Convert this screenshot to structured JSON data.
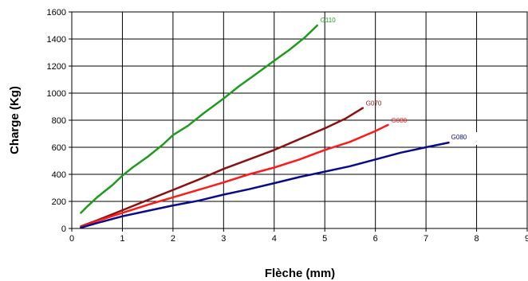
{
  "chart_data": {
    "type": "line",
    "title": "",
    "xlabel": "Flèche (mm)",
    "ylabel": "Charge (Kg)",
    "xlim": [
      0,
      9
    ],
    "ylim": [
      0,
      1600
    ],
    "x_ticks": [
      "0",
      "1",
      "2",
      "3",
      "4",
      "5",
      "6",
      "7",
      "8",
      "9"
    ],
    "y_ticks": [
      "0",
      "200",
      "400",
      "600",
      "800",
      "1000",
      "1200",
      "1400",
      "1600"
    ],
    "grid": true,
    "series": [
      {
        "name": "G110",
        "color": "#1e9b1e",
        "points": [
          [
            0.18,
            115
          ],
          [
            0.3,
            160
          ],
          [
            0.5,
            230
          ],
          [
            0.8,
            320
          ],
          [
            1.0,
            390
          ],
          [
            1.2,
            450
          ],
          [
            1.5,
            530
          ],
          [
            1.8,
            620
          ],
          [
            2.0,
            690
          ],
          [
            2.3,
            760
          ],
          [
            2.6,
            850
          ],
          [
            3.0,
            960
          ],
          [
            3.3,
            1050
          ],
          [
            3.6,
            1130
          ],
          [
            4.0,
            1240
          ],
          [
            4.3,
            1320
          ],
          [
            4.6,
            1410
          ],
          [
            4.85,
            1500
          ]
        ]
      },
      {
        "name": "G070",
        "color": "#8b1010",
        "points": [
          [
            0.18,
            15
          ],
          [
            0.5,
            60
          ],
          [
            1.0,
            135
          ],
          [
            1.5,
            210
          ],
          [
            2.0,
            285
          ],
          [
            2.5,
            360
          ],
          [
            3.0,
            440
          ],
          [
            3.5,
            510
          ],
          [
            4.0,
            580
          ],
          [
            4.5,
            660
          ],
          [
            5.0,
            740
          ],
          [
            5.4,
            810
          ],
          [
            5.75,
            890
          ]
        ]
      },
      {
        "name": "G080",
        "color": "#ff1a1a",
        "points": [
          [
            0.18,
            10
          ],
          [
            0.5,
            55
          ],
          [
            1.0,
            115
          ],
          [
            1.5,
            175
          ],
          [
            2.0,
            230
          ],
          [
            2.5,
            285
          ],
          [
            3.0,
            340
          ],
          [
            3.5,
            400
          ],
          [
            4.0,
            450
          ],
          [
            4.5,
            510
          ],
          [
            5.0,
            580
          ],
          [
            5.5,
            640
          ],
          [
            6.0,
            720
          ],
          [
            6.25,
            765
          ]
        ]
      },
      {
        "name": "G080",
        "color": "#0a0a8c",
        "points": [
          [
            0.18,
            5
          ],
          [
            0.5,
            40
          ],
          [
            1.0,
            90
          ],
          [
            1.5,
            130
          ],
          [
            2.0,
            170
          ],
          [
            2.5,
            205
          ],
          [
            3.0,
            250
          ],
          [
            3.5,
            290
          ],
          [
            4.0,
            335
          ],
          [
            4.5,
            380
          ],
          [
            5.0,
            420
          ],
          [
            5.5,
            460
          ],
          [
            6.0,
            510
          ],
          [
            6.5,
            560
          ],
          [
            7.0,
            600
          ],
          [
            7.45,
            635
          ]
        ]
      }
    ]
  }
}
